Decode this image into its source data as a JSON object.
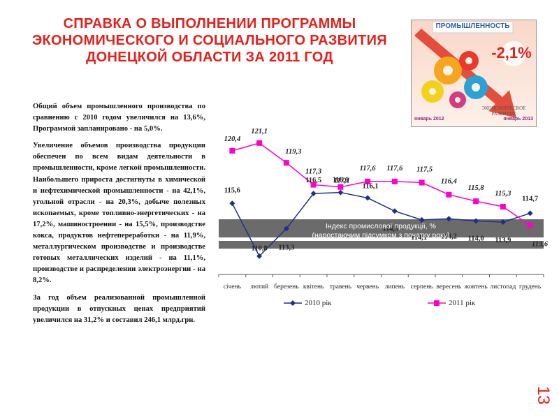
{
  "slide": {
    "title": "СПРАВКА О ВЫПОЛНЕНИИ ПРОГРАММЫ ЭКОНОМИЧЕСКОГО И СОЦИАЛЬНОГО РАЗВИТИЯ ДОНЕЦКОЙ ОБЛАСТИ ЗА 2011 ГОД",
    "page_number": "13",
    "title_color": "#e4211b"
  },
  "text": {
    "p1": "Общий объем промышленного производства по сравнению с 2010 годом увеличился на 13,6%, Программой запланировано - на 5,0%.",
    "p2": "Увеличение объемов производства продукции обеспечен по всем видам деятельности в промышленности, кроме легкой промышленности. Наибольшего прироста достигнуты в химической и нефтехимической промышленности - на 42,1%, угольной отрасли - на 20,3%, добыче полезных ископаемых, кроме топливно-энергетических - на 17,2%, машиностроении - на 15,5%, производстве кокса, продуктов нефтепереработки - на 11,9%, металлургическом производстве и производстве готовых металлических изделий - на 11,1%, производстве и распределении электроэнергии - на 8,2%.",
    "p3": "За год объем реализованной промышленной продукции в отпускных ценах предприятий увеличился на 31,2% и составил 246,1 млрд.грн."
  },
  "promo_image": {
    "header": "ПРОМЫШЛЕННОСТЬ",
    "percent": "-2,1%",
    "caption": "ЭКОНОМИЧЕСКОЕ РАЗВИТИЕ",
    "left_date": "январь 2012",
    "right_date": "январь 2013",
    "accent": "#e4211b"
  },
  "chart_data": {
    "type": "line",
    "title": "Індекс промислової продукції, % (наростаючим підсумком з початку року)",
    "categories": [
      "січень",
      "лютий",
      "березень",
      "квітень",
      "травень",
      "червень",
      "липень",
      "серпень",
      "вересень",
      "жовтень",
      "листопад",
      "грудень"
    ],
    "series": [
      {
        "name": "2010 рік",
        "color": "#1f2f86",
        "marker": "diamond",
        "values": [
          115.6,
          110.8,
          113.3,
          116.5,
          116.6,
          116.1,
          114.9,
          114.1,
          114.2,
          114.0,
          113.9,
          114.7
        ],
        "labels": [
          "115,6",
          "110,8",
          "113,3",
          "116,5",
          "116,6",
          "116,1",
          "114,9",
          "114,1",
          "114,2",
          "114,0",
          "113,9",
          "114,7"
        ]
      },
      {
        "name": "2011 рік",
        "color": "#ff00cc",
        "marker": "square",
        "values": [
          120.4,
          121.1,
          119.3,
          117.3,
          117.1,
          117.6,
          117.6,
          117.5,
          116.4,
          115.8,
          115.3,
          113.6
        ],
        "labels": [
          "120,4",
          "121,1",
          "119,3",
          "117,3",
          "117,1",
          "117,6",
          "117,6",
          "117,5",
          "116,4",
          "115,8",
          "115,3",
          "113,6"
        ]
      }
    ],
    "ylim": [
      109,
      123
    ],
    "grid": false,
    "legend_position": "bottom"
  }
}
